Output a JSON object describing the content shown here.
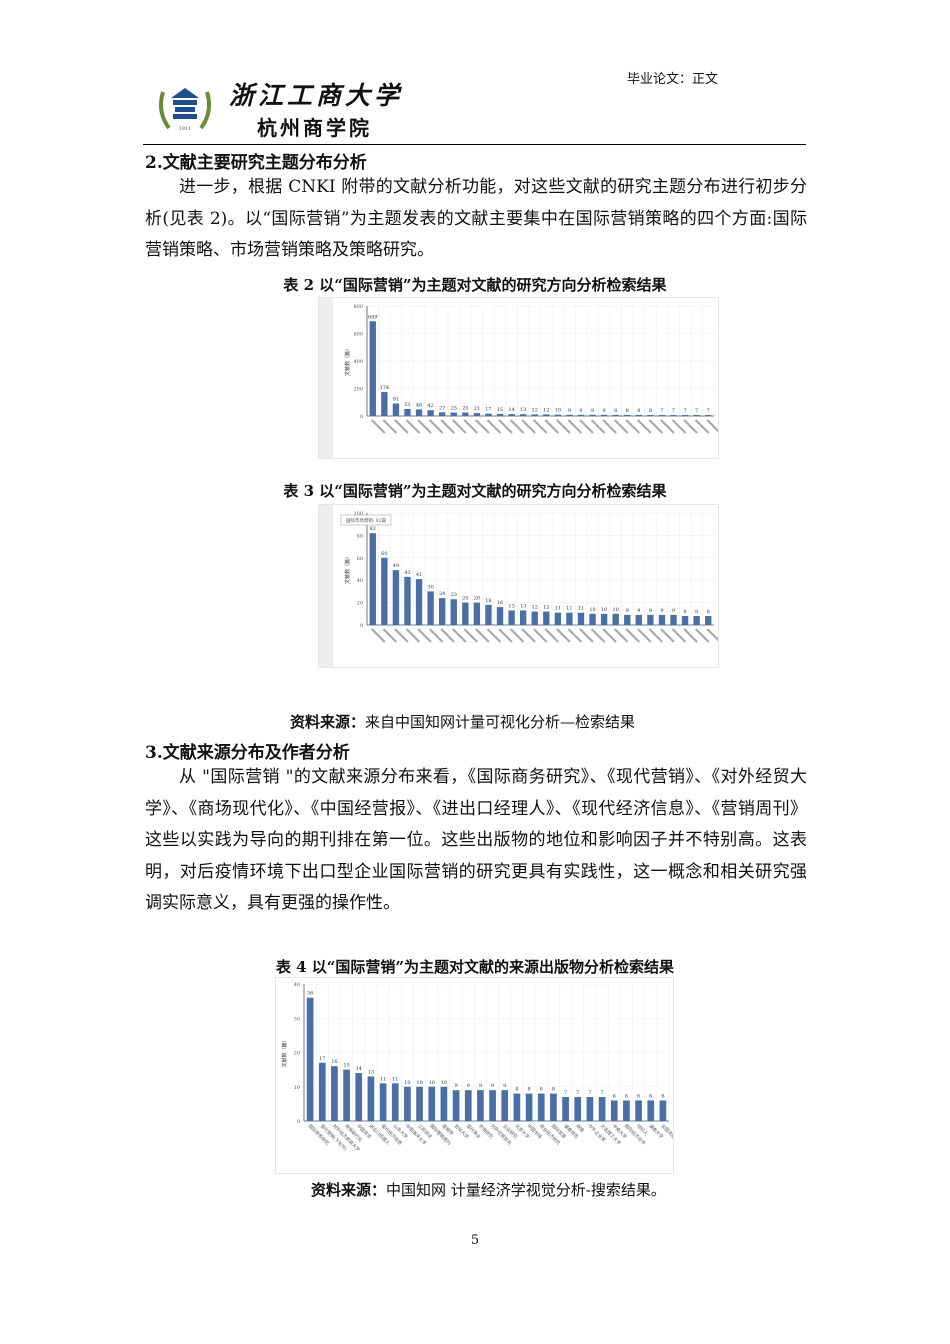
{
  "header": {
    "logo_text_line1": "浙江工商大学",
    "logo_text_line2": "杭州商学院",
    "right": "毕业论文：正文"
  },
  "section2": {
    "heading": "2.文献主要研究主题分布分析",
    "paragraph": "进一步，根据 CNKI 附带的文献分析功能，对这些文献的研究主题分布进行初步分析(见表 2)。以“国际营销”为主题发表的文献主要集中在国际营销策略的四个方面:国际营销策略、市场营销策略及策略研究。"
  },
  "table2_caption": "表 2  以“国际营销”为主题对文献的研究方向分析检索结果",
  "table3_caption": "表 3  以“国际营销”为主题对文献的研究方向分析检索结果",
  "source1": {
    "label": "资料来源：",
    "text": "来自中国知网计量可视化分析—检索结果"
  },
  "section3": {
    "heading": "3.文献来源分布及作者分析",
    "paragraph": "从 \"国际营销 \"的文献来源分布来看，《国际商务研究》、《现代营销》、《对外经贸大学》、《商场现代化》、《中国经营报》、《进出口经理人》、《现代经济信息》、《营销周刊》这些以实践为导向的期刊排在第一位。这些出版物的地位和影响因子并不特别高。这表明，对后疫情环境下出口型企业国际营销的研究更具有实践性，这一概念和相关研究强调实际意义，具有更强的操作性。"
  },
  "table4_caption": "表 4  以“国际营销”为主题对文献的来源出版物分析检索结果",
  "source2": {
    "label": "资料来源：",
    "text": "中国知网  计量经济学视觉分析-搜索结果。"
  },
  "page_number": "5",
  "chart_data": [
    {
      "type": "bar",
      "ylabel": "文献数（篇）",
      "ylim": [
        0,
        800
      ],
      "yticks": [
        0,
        200,
        400,
        600,
        800
      ],
      "bar_color": "#4a6fa5",
      "values": [
        689,
        174,
        91,
        51,
        48,
        42,
        27,
        25,
        25,
        21,
        17,
        15,
        14,
        13,
        12,
        12,
        10,
        9,
        9,
        9,
        9,
        8,
        8,
        8,
        8,
        7,
        7,
        7,
        7,
        7
      ]
    },
    {
      "type": "bar",
      "ylabel": "文献数（篇）",
      "ylim": [
        0,
        100
      ],
      "yticks": [
        0,
        20,
        40,
        60,
        80,
        100
      ],
      "bar_color": "#4a6fa5",
      "tooltip": "国际市场营销: 82篇",
      "values": [
        82,
        60,
        49,
        43,
        41,
        30,
        24,
        23,
        20,
        20,
        18,
        16,
        13,
        13,
        12,
        12,
        11,
        11,
        11,
        10,
        10,
        10,
        9,
        9,
        9,
        9,
        9,
        8,
        8,
        8
      ]
    },
    {
      "type": "bar",
      "ylabel": "文献数（篇）",
      "ylim": [
        0,
        40
      ],
      "yticks": [
        0,
        10,
        20,
        30,
        40
      ],
      "bar_color": "#4a6fa5",
      "categories": [
        "国际商务研究",
        "现代营销(下旬刊)",
        "对外经济贸易大学",
        "商场现代化",
        "中国商论",
        "进出口经理人",
        "现代经济信息",
        "山东大学",
        "中国海洋大学",
        "江苏商论",
        "国际营销周刊",
        "营销界",
        "吉林大学",
        "现代商业",
        "市场研究",
        "对外经贸实务",
        "企业研究",
        "北京大学",
        "中国市场",
        "商业经济研究",
        "国际贸易",
        "湖南师范",
        "商情",
        "中外企业家",
        "大连理工大学",
        "中南大学",
        "国际经济合作",
        "经纪人",
        "湖南大学",
        "全国流通"
      ],
      "values": [
        36,
        17,
        16,
        15,
        14,
        13,
        11,
        11,
        10,
        10,
        10,
        10,
        9,
        9,
        9,
        9,
        9,
        8,
        8,
        8,
        8,
        7,
        7,
        7,
        7,
        6,
        6,
        6,
        6,
        6
      ]
    }
  ]
}
